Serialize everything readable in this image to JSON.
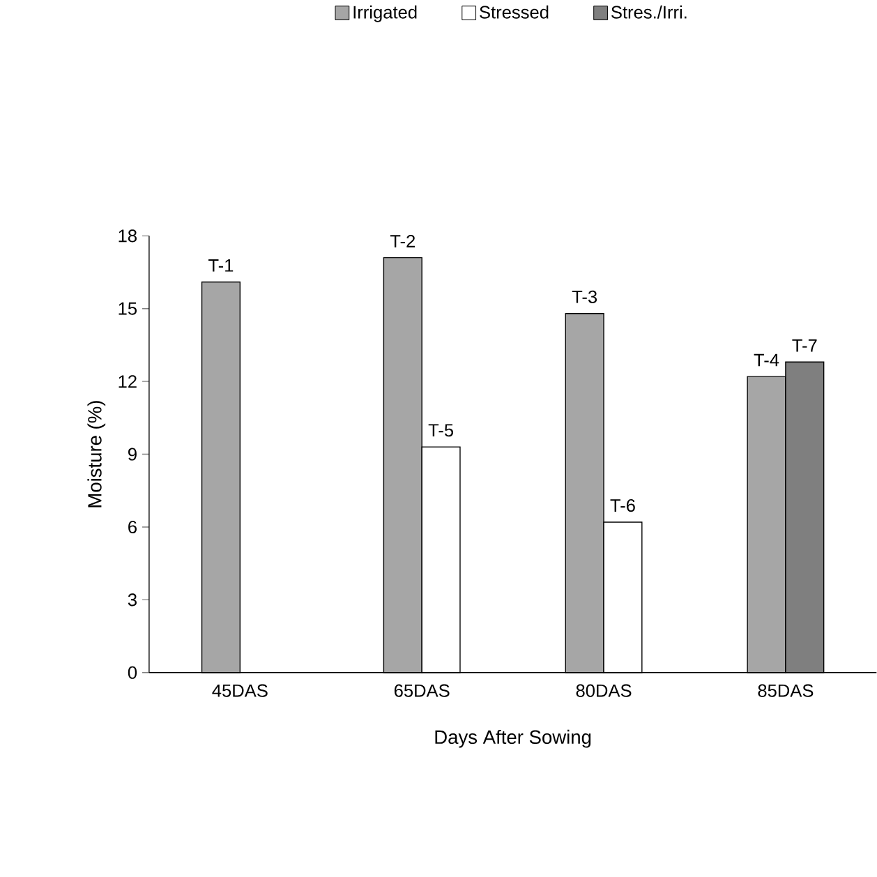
{
  "chart_data": {
    "type": "bar",
    "xlabel": "Days After Sowing",
    "ylabel": "Moisture  (%)",
    "categories": [
      "45DAS",
      "65DAS",
      "80DAS",
      "85DAS"
    ],
    "series": [
      {
        "name": "Irrigated",
        "color": "#a6a6a6",
        "values": [
          16.1,
          17.1,
          14.8,
          12.2
        ]
      },
      {
        "name": "Stressed",
        "color": "#ffffff",
        "values": [
          null,
          9.3,
          6.2,
          null
        ]
      },
      {
        "name": "Stres./Irri.",
        "color": "#7f7f7f",
        "values": [
          null,
          null,
          null,
          12.8
        ]
      }
    ],
    "ylim": [
      0,
      18
    ],
    "yticks": [
      0,
      3,
      6,
      9,
      12,
      15,
      18
    ],
    "grid": false,
    "legend": "top",
    "annotations": [
      {
        "text": "T-1",
        "x": "45DAS",
        "y": 16.1
      },
      {
        "text": "T-2",
        "x": "65DAS",
        "y": 17.1
      },
      {
        "text": "T-3",
        "x": "80DAS",
        "y": 14.8
      },
      {
        "text": "T-4",
        "x": "85DAS",
        "y": 12.2
      },
      {
        "text": "T-5",
        "x": "65DAS",
        "y": 9.3
      },
      {
        "text": "T-6",
        "x": "80DAS",
        "y": 6.2
      },
      {
        "text": "T-7",
        "x": "85DAS",
        "y": 12.8
      }
    ]
  }
}
